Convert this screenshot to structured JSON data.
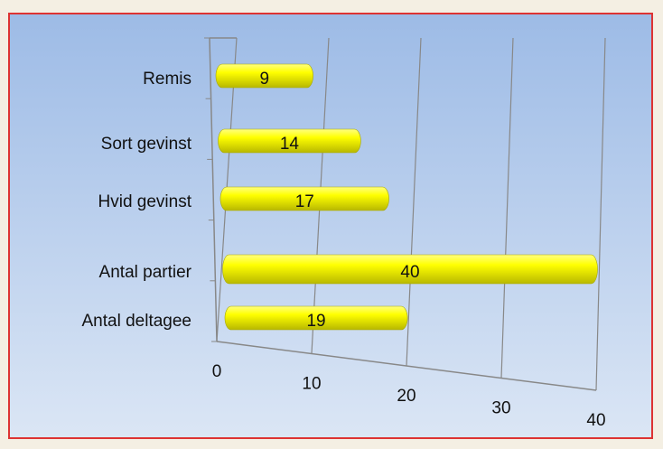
{
  "chart_data": {
    "type": "bar",
    "orientation": "horizontal",
    "categories": [
      "Remis",
      "Sort gevinst",
      "Hvid gevinst",
      "Antal partier",
      "Antal deltagee"
    ],
    "values": [
      9,
      14,
      17,
      40,
      19
    ],
    "color": "#ffff00",
    "xlim": [
      0,
      40
    ],
    "xticks": [
      0,
      10,
      20,
      30,
      40
    ],
    "grid": true
  }
}
